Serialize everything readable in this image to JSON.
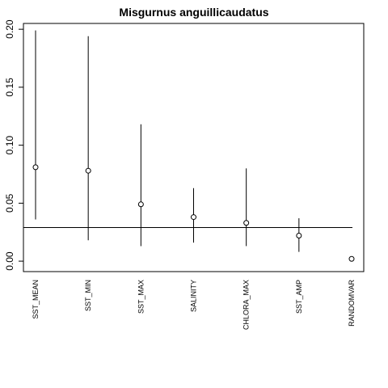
{
  "chart_data": {
    "type": "scatter",
    "title": "Misgurnus anguillicaudatus",
    "xlabel": "",
    "ylabel": "",
    "ylim": [
      -0.009,
      0.205
    ],
    "yticks": [
      "0.00",
      "0.05",
      "0.10",
      "0.15",
      "0.20"
    ],
    "ytick_values": [
      0.0,
      0.05,
      0.1,
      0.15,
      0.2
    ],
    "categories": [
      "SST_MEAN",
      "SST_MIN",
      "SST_MAX",
      "SALINITY",
      "CHLORA_MAX",
      "SST_AMP",
      "RANDOMVAR"
    ],
    "points": [
      0.081,
      0.078,
      0.049,
      0.038,
      0.033,
      0.022,
      0.002
    ],
    "lower": [
      0.036,
      0.018,
      0.013,
      0.016,
      0.013,
      0.008,
      null
    ],
    "upper": [
      0.199,
      0.194,
      0.118,
      0.063,
      0.08,
      0.037,
      null
    ],
    "reference_line": 0.029,
    "grid": false
  }
}
